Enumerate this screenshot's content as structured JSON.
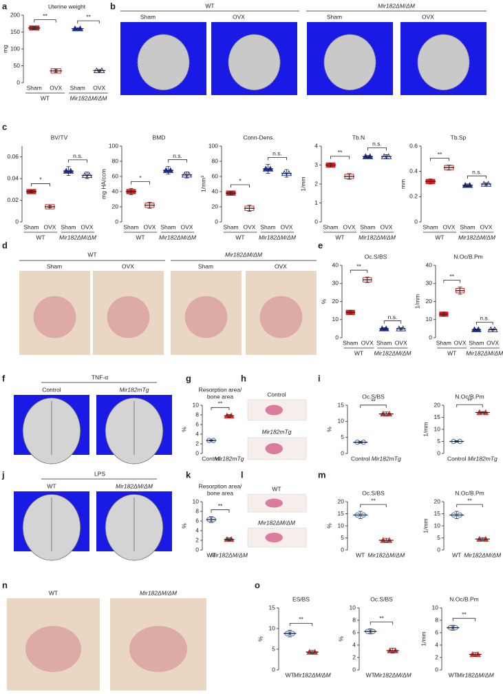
{
  "chart_data": [
    {
      "type": "dot",
      "panel": "a",
      "title": "Uterine weight",
      "ylabel": "mg",
      "ylim": [
        0,
        200
      ],
      "yticks": [
        0,
        50,
        100,
        150,
        200
      ],
      "groups": [
        {
          "name": "WT",
          "categories": [
            "Sham",
            "OVX"
          ],
          "values": [
            162,
            35
          ],
          "errors": [
            4,
            4
          ],
          "colors": [
            "#e02020",
            "#e02020"
          ],
          "markers": [
            "square",
            "square-open"
          ],
          "significance": "**"
        },
        {
          "name": "Mir182ΔM/ΔM",
          "categories": [
            "Sham",
            "OVX"
          ],
          "values": [
            160,
            36
          ],
          "errors": [
            3,
            3
          ],
          "colors": [
            "#1a2fb0",
            "#1a2fb0"
          ],
          "markers": [
            "triangle",
            "triangle-open"
          ],
          "significance": "**"
        }
      ]
    },
    {
      "type": "dot",
      "panel": "c",
      "title": "BV/TV",
      "ylim": [
        0,
        0.07
      ],
      "yticks": [
        0,
        0.02,
        0.04,
        0.06
      ],
      "groups": [
        {
          "name": "WT",
          "categories": [
            "Sham",
            "OVX"
          ],
          "values": [
            0.028,
            0.014
          ],
          "errors": [
            0.001,
            0.001
          ],
          "colors": [
            "#e02020",
            "#e02020"
          ],
          "markers": [
            "square",
            "square-open"
          ],
          "significance": "*"
        },
        {
          "name": "Mir182ΔM/ΔM",
          "categories": [
            "Sham",
            "OVX"
          ],
          "values": [
            0.047,
            0.043
          ],
          "errors": [
            0.004,
            0.003
          ],
          "colors": [
            "#1a2fb0",
            "#1a2fb0"
          ],
          "markers": [
            "triangle",
            "triangle-open"
          ],
          "significance": "n.s."
        }
      ]
    },
    {
      "type": "dot",
      "title": "BMD",
      "ylabel": "mg HA/ccm",
      "ylim": [
        0,
        100
      ],
      "yticks": [
        0,
        20,
        40,
        60,
        80,
        100
      ],
      "groups": [
        {
          "name": "WT",
          "categories": [
            "Sham",
            "OVX"
          ],
          "values": [
            40,
            22
          ],
          "errors": [
            4,
            4
          ],
          "colors": [
            "#e02020",
            "#e02020"
          ],
          "markers": [
            "square",
            "square-open"
          ],
          "significance": "*"
        },
        {
          "name": "Mir182ΔM/ΔM",
          "categories": [
            "Sham",
            "OVX"
          ],
          "values": [
            68,
            62
          ],
          "errors": [
            5,
            4
          ],
          "colors": [
            "#1a2fb0",
            "#1a2fb0"
          ],
          "markers": [
            "triangle",
            "triangle-open"
          ],
          "significance": "n.s."
        }
      ]
    },
    {
      "type": "dot",
      "title": "Conn-Dens.",
      "ylabel": "1/mm³",
      "ylim": [
        0,
        100
      ],
      "yticks": [
        0,
        20,
        40,
        60,
        80,
        100
      ],
      "groups": [
        {
          "name": "WT",
          "categories": [
            "Sham",
            "OVX"
          ],
          "values": [
            38,
            18
          ],
          "errors": [
            2,
            4
          ],
          "colors": [
            "#e02020",
            "#e02020"
          ],
          "markers": [
            "square",
            "square-open"
          ],
          "significance": "*"
        },
        {
          "name": "Mir182ΔM/ΔM",
          "categories": [
            "Sham",
            "OVX"
          ],
          "values": [
            70,
            64
          ],
          "errors": [
            6,
            5
          ],
          "colors": [
            "#1a2fb0",
            "#1a2fb0"
          ],
          "markers": [
            "triangle",
            "triangle-open"
          ],
          "significance": "n.s."
        }
      ]
    },
    {
      "type": "dot",
      "title": "Tb.N",
      "ylabel": "1/mm",
      "ylim": [
        0,
        4
      ],
      "yticks": [
        0,
        1,
        2,
        3,
        4
      ],
      "groups": [
        {
          "name": "WT",
          "categories": [
            "Sham",
            "OVX"
          ],
          "values": [
            3.0,
            2.4
          ],
          "errors": [
            0.1,
            0.15
          ],
          "colors": [
            "#e02020",
            "#e02020"
          ],
          "markers": [
            "square",
            "square-open"
          ],
          "significance": "**"
        },
        {
          "name": "Mir182ΔM/ΔM",
          "categories": [
            "Sham",
            "OVX"
          ],
          "values": [
            3.45,
            3.45
          ],
          "errors": [
            0.05,
            0.1
          ],
          "colors": [
            "#1a2fb0",
            "#1a2fb0"
          ],
          "markers": [
            "triangle",
            "triangle-open"
          ],
          "significance": "n.s."
        }
      ]
    },
    {
      "type": "dot",
      "title": "Tb.Sp",
      "ylabel": "mm",
      "ylim": [
        0,
        0.6
      ],
      "yticks": [
        0,
        0.2,
        0.4,
        0.6
      ],
      "groups": [
        {
          "name": "WT",
          "categories": [
            "Sham",
            "OVX"
          ],
          "values": [
            0.32,
            0.43
          ],
          "errors": [
            0.02,
            0.02
          ],
          "colors": [
            "#e02020",
            "#e02020"
          ],
          "markers": [
            "square",
            "square-open"
          ],
          "significance": "**"
        },
        {
          "name": "Mir182ΔM/ΔM",
          "categories": [
            "Sham",
            "OVX"
          ],
          "values": [
            0.29,
            0.3
          ],
          "errors": [
            0.01,
            0.01
          ],
          "colors": [
            "#1a2fb0",
            "#1a2fb0"
          ],
          "markers": [
            "triangle",
            "triangle-open"
          ],
          "significance": "n.s."
        }
      ]
    },
    {
      "type": "dot",
      "panel": "e",
      "title": "Oc.S/BS",
      "ylabel": "%",
      "ylim": [
        0,
        40
      ],
      "yticks": [
        0,
        10,
        20,
        30,
        40
      ],
      "groups": [
        {
          "name": "WT",
          "categories": [
            "Sham",
            "OVX"
          ],
          "values": [
            14,
            32
          ],
          "errors": [
            1,
            1.5
          ],
          "colors": [
            "#e02020",
            "#e02020"
          ],
          "markers": [
            "square",
            "square-open"
          ],
          "significance": "**"
        },
        {
          "name": "Mir182ΔM/ΔM",
          "categories": [
            "Sham",
            "OVX"
          ],
          "values": [
            5,
            5
          ],
          "errors": [
            0.5,
            0.5
          ],
          "colors": [
            "#1a2fb0",
            "#1a2fb0"
          ],
          "markers": [
            "triangle",
            "triangle-open"
          ],
          "significance": "n.s."
        }
      ]
    },
    {
      "type": "dot",
      "title": "N.Oc/B.Pm",
      "ylabel": "1/mm",
      "ylim": [
        0,
        40
      ],
      "yticks": [
        0,
        10,
        20,
        30,
        40
      ],
      "groups": [
        {
          "name": "WT",
          "categories": [
            "Sham",
            "OVX"
          ],
          "values": [
            13,
            26
          ],
          "errors": [
            1,
            2
          ],
          "colors": [
            "#e02020",
            "#e02020"
          ],
          "markers": [
            "square",
            "square-open"
          ],
          "significance": "**"
        },
        {
          "name": "Mir182ΔM/ΔM",
          "categories": [
            "Sham",
            "OVX"
          ],
          "values": [
            4.5,
            4.5
          ],
          "errors": [
            0.3,
            0.3
          ],
          "colors": [
            "#1a2fb0",
            "#1a2fb0"
          ],
          "markers": [
            "triangle",
            "triangle-open"
          ],
          "significance": "n.s."
        }
      ]
    },
    {
      "type": "dot",
      "panel": "g",
      "title": [
        "Resorption area/",
        "bone area"
      ],
      "ylabel": "%",
      "ylim": [
        0,
        10
      ],
      "yticks": [
        0,
        2,
        4,
        6,
        8,
        10
      ],
      "groups": [
        {
          "categories": [
            "Control",
            "Mir182mTg"
          ],
          "values": [
            2.7,
            7.8
          ],
          "errors": [
            0.1,
            0.3
          ],
          "colors": [
            "#3a6fd0",
            "#e03030"
          ],
          "markers": [
            "circle-open",
            "triangle"
          ],
          "significance": "**"
        }
      ]
    },
    {
      "type": "dot",
      "panel": "i",
      "title": "Oc.S/BS",
      "ylabel": "%",
      "ylim": [
        0,
        15
      ],
      "yticks": [
        0,
        5,
        10,
        15
      ],
      "groups": [
        {
          "categories": [
            "Control",
            "Mir182mTg"
          ],
          "values": [
            3.5,
            12.3
          ],
          "errors": [
            0.3,
            0.6
          ],
          "colors": [
            "#3a6fd0",
            "#e03030"
          ],
          "markers": [
            "circle-open",
            "triangle"
          ],
          "significance": "**"
        }
      ]
    },
    {
      "type": "dot",
      "title": "N.Oc/B.Pm",
      "ylabel": "1/mm",
      "ylim": [
        0,
        20
      ],
      "yticks": [
        0,
        5,
        10,
        15,
        20
      ],
      "groups": [
        {
          "categories": [
            "Control",
            "Mir182mTg"
          ],
          "values": [
            5,
            17
          ],
          "errors": [
            0.3,
            0.4
          ],
          "colors": [
            "#3a6fd0",
            "#e03030"
          ],
          "markers": [
            "circle-open",
            "triangle"
          ],
          "significance": "**"
        }
      ]
    },
    {
      "type": "dot",
      "panel": "k",
      "title": [
        "Resorption area/",
        "bone area"
      ],
      "ylabel": "%",
      "ylim": [
        0,
        10
      ],
      "yticks": [
        0,
        2,
        4,
        6,
        8,
        10
      ],
      "groups": [
        {
          "categories": [
            "WT",
            "Mir182ΔM/ΔM"
          ],
          "values": [
            6.3,
            2.2
          ],
          "errors": [
            0.6,
            0.3
          ],
          "colors": [
            "#3a6fd0",
            "#e03030"
          ],
          "markers": [
            "circle-open",
            "triangle"
          ],
          "significance": "**"
        }
      ]
    },
    {
      "type": "dot",
      "panel": "m",
      "title": "Oc.S/BS",
      "ylabel": "%",
      "ylim": [
        0,
        20
      ],
      "yticks": [
        0,
        5,
        10,
        15,
        20
      ],
      "groups": [
        {
          "categories": [
            "WT",
            "Mir182ΔM/ΔM"
          ],
          "values": [
            14.5,
            4
          ],
          "errors": [
            1.5,
            0.8
          ],
          "colors": [
            "#3a6fd0",
            "#e03030"
          ],
          "markers": [
            "circle-open",
            "triangle"
          ],
          "significance": "**"
        }
      ]
    },
    {
      "type": "dot",
      "title": "N.Oc/B.Pm",
      "ylabel": "1/mm",
      "ylim": [
        0,
        20
      ],
      "yticks": [
        0,
        5,
        10,
        15,
        20
      ],
      "groups": [
        {
          "categories": [
            "WT",
            "Mir182ΔM/ΔM"
          ],
          "values": [
            14.5,
            4.5
          ],
          "errors": [
            1.5,
            0.6
          ],
          "colors": [
            "#3a6fd0",
            "#e03030"
          ],
          "markers": [
            "circle-open",
            "triangle"
          ],
          "significance": "**"
        }
      ]
    },
    {
      "type": "dot",
      "panel": "o",
      "title": "ES/BS",
      "ylabel": "%",
      "ylim": [
        0,
        15
      ],
      "yticks": [
        0,
        5,
        10,
        15
      ],
      "groups": [
        {
          "categories": [
            "WT",
            "Mir182ΔM/ΔM"
          ],
          "values": [
            8.8,
            4.3
          ],
          "errors": [
            0.8,
            0.4
          ],
          "colors": [
            "#3a6fd0",
            "#e03030"
          ],
          "markers": [
            "circle-open",
            "triangle"
          ],
          "significance": "**"
        }
      ]
    },
    {
      "type": "dot",
      "title": "Oc.S/BS",
      "ylabel": "%",
      "ylim": [
        0,
        10
      ],
      "yticks": [
        0,
        2,
        4,
        6,
        8,
        10
      ],
      "groups": [
        {
          "categories": [
            "WT",
            "Mir182ΔM/ΔM"
          ],
          "values": [
            6.2,
            3.1
          ],
          "errors": [
            0.4,
            0.4
          ],
          "colors": [
            "#3a6fd0",
            "#e03030"
          ],
          "markers": [
            "circle-open",
            "triangle"
          ],
          "significance": "**"
        }
      ]
    },
    {
      "type": "dot",
      "title": "N.Oc/B.Pm",
      "ylabel": "1/mm",
      "ylim": [
        0,
        10
      ],
      "yticks": [
        0,
        2,
        4,
        6,
        8,
        10
      ],
      "groups": [
        {
          "categories": [
            "WT",
            "Mir182ΔM/ΔM"
          ],
          "values": [
            6.8,
            2.5
          ],
          "errors": [
            0.4,
            0.3
          ],
          "colors": [
            "#3a6fd0",
            "#e03030"
          ],
          "markers": [
            "circle-open",
            "triangle"
          ],
          "significance": "**"
        }
      ]
    }
  ],
  "image_panels": [
    {
      "panel": "b",
      "groups": [
        {
          "name": "WT",
          "labels": [
            "Sham",
            "OVX"
          ]
        },
        {
          "name": "Mir182ΔM/ΔM",
          "labels": [
            "Sham",
            "OVX"
          ]
        }
      ]
    },
    {
      "panel": "d",
      "groups": [
        {
          "name": "WT",
          "labels": [
            "Sham",
            "OVX"
          ]
        },
        {
          "name": "Mir182ΔM/ΔM",
          "labels": [
            "Sham",
            "OVX"
          ]
        }
      ]
    },
    {
      "panel": "f",
      "title": "TNF-α",
      "labels": [
        "Control",
        "Mir182mTg"
      ]
    },
    {
      "panel": "h",
      "labels": [
        "Control",
        "Mir182mTg"
      ]
    },
    {
      "panel": "j",
      "title": "LPS",
      "labels": [
        "WT",
        "Mir182ΔM/ΔM"
      ]
    },
    {
      "panel": "l",
      "labels": [
        "WT",
        "Mir182ΔM/ΔM"
      ]
    },
    {
      "panel": "n",
      "labels": [
        "WT",
        "Mir182ΔM/ΔM"
      ]
    }
  ]
}
